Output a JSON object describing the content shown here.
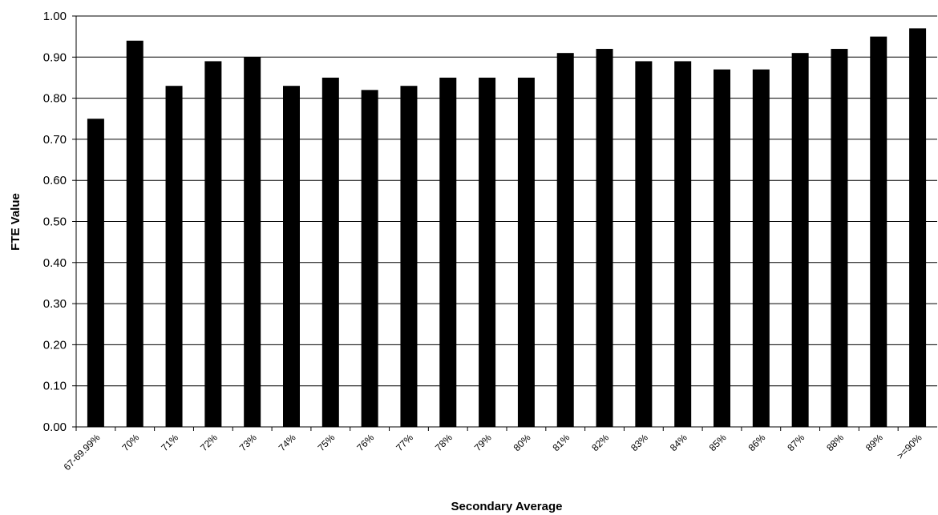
{
  "chart_data": {
    "type": "bar",
    "title": "",
    "xlabel": "Secondary Average",
    "ylabel": "FTE Value",
    "ylim": [
      0,
      1.0
    ],
    "y_ticks": [
      "0.00",
      "0.10",
      "0.20",
      "0.30",
      "0.40",
      "0.50",
      "0.60",
      "0.70",
      "0.80",
      "0.90",
      "1.00"
    ],
    "grid": "horizontal",
    "bar_color": "#000000",
    "categories": [
      "67-69.99%",
      "70%",
      "71%",
      "72%",
      "73%",
      "74%",
      "75%",
      "76%",
      "77%",
      "78%",
      "79%",
      "80%",
      "81%",
      "82%",
      "83%",
      "84%",
      "85%",
      "86%",
      "87%",
      "88%",
      "89%",
      ">=90%"
    ],
    "values": [
      0.75,
      0.94,
      0.83,
      0.89,
      0.9,
      0.83,
      0.85,
      0.82,
      0.83,
      0.85,
      0.85,
      0.85,
      0.91,
      0.92,
      0.89,
      0.89,
      0.87,
      0.87,
      0.91,
      0.92,
      0.95,
      0.97
    ]
  }
}
